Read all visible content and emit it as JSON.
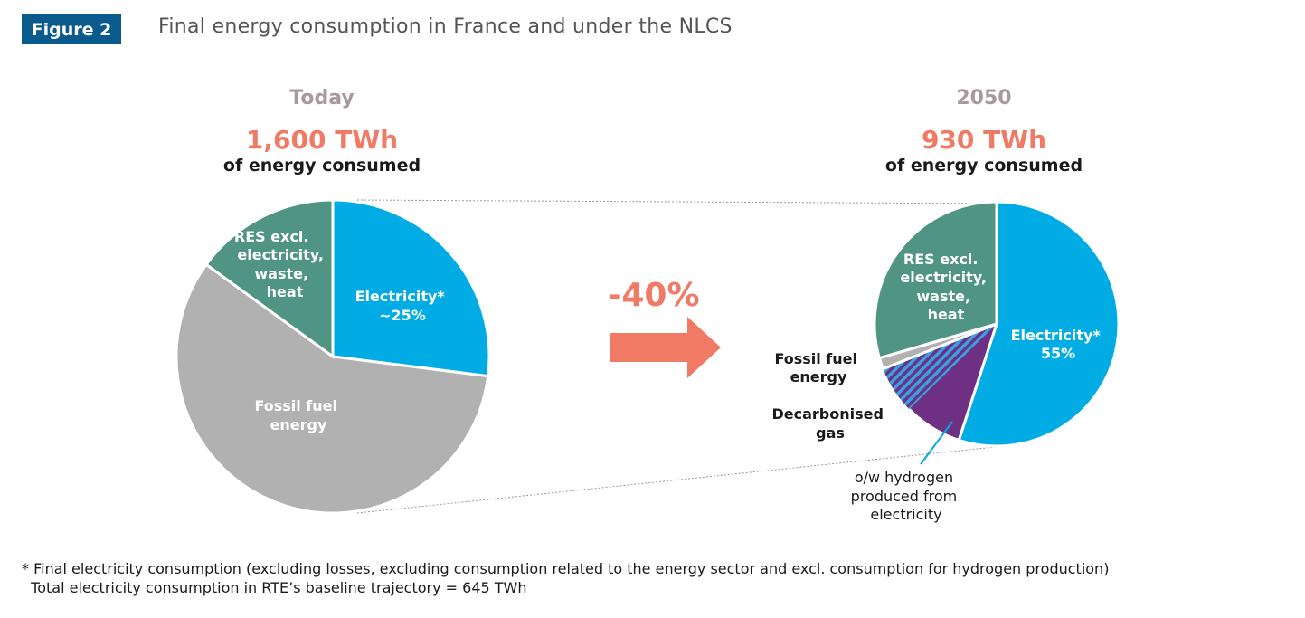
{
  "figure_label": "Figure 2",
  "title": "Final energy consumption in France and under the NLCS",
  "change_label": "-40%",
  "colors": {
    "electricity": "#00ace3",
    "res": "#509483",
    "fossil": "#b0b1b0",
    "decarbonised_gas": "#6e3083",
    "hydrogen_hatch": "#35a3e3",
    "accent": "#f07a63",
    "badge": "#0b5a8e"
  },
  "chart_data": [
    {
      "type": "pie",
      "header": "Today",
      "total": "1,600 TWh",
      "subtitle": "of energy consumed",
      "slices": [
        {
          "key": "electricity",
          "label": [
            "Electricity*",
            "~25%"
          ],
          "value": 27
        },
        {
          "key": "fossil",
          "label": [
            "Fossil fuel",
            "energy"
          ],
          "value": 58
        },
        {
          "key": "res",
          "label": [
            "RES excl.",
            "electricity,",
            "waste,",
            "heat"
          ],
          "value": 15
        }
      ]
    },
    {
      "type": "pie",
      "header": "2050",
      "total": "930 TWh",
      "subtitle": "of energy consumed",
      "slices": [
        {
          "key": "electricity",
          "label": [
            "Electricity*",
            "55%"
          ],
          "value": 55
        },
        {
          "key": "decarbonised_gas",
          "label": [
            "Decarbonised",
            "gas"
          ],
          "value": 14,
          "hatched_share": 0.45
        },
        {
          "key": "fossil",
          "label": [
            "Fossil fuel",
            "energy"
          ],
          "value": 1.5
        },
        {
          "key": "res",
          "label": [
            "RES excl.",
            "electricity,",
            "waste,",
            "heat"
          ],
          "value": 29.5
        }
      ],
      "callout": [
        "o/w hydrogen",
        "produced from",
        "electricity"
      ]
    }
  ],
  "footnote": [
    "* Final electricity consumption (excluding losses, excluding consumption related to the energy sector and excl. consumption for hydrogen production)",
    "  Total electricity consumption in RTE’s baseline trajectory = 645 TWh"
  ]
}
